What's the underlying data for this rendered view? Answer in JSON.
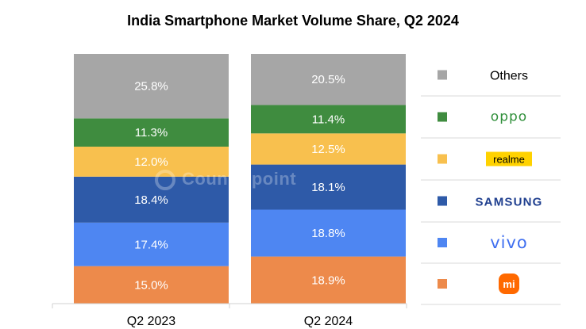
{
  "chart_data": {
    "type": "bar",
    "stacked": true,
    "title": "India Smartphone Market Volume Share, Q2 2024",
    "categories": [
      "Q2 2023",
      "Q2 2024"
    ],
    "ylim": [
      0,
      100
    ],
    "series": [
      {
        "name": "Xiaomi",
        "color": "#ED8A4B",
        "values": [
          15.0,
          18.9
        ],
        "labels": [
          "15.0%",
          "18.9%"
        ]
      },
      {
        "name": "vivo",
        "color": "#4E86F2",
        "values": [
          17.4,
          18.8
        ],
        "labels": [
          "17.4%",
          "18.8%"
        ]
      },
      {
        "name": "SAMSUNG",
        "color": "#2E5AA8",
        "values": [
          18.4,
          18.1
        ],
        "labels": [
          "18.4%",
          "18.1%"
        ]
      },
      {
        "name": "realme",
        "color": "#F8C04E",
        "values": [
          12.0,
          12.5
        ],
        "labels": [
          "12.0%",
          "12.5%"
        ]
      },
      {
        "name": "oppo",
        "color": "#3F8C3F",
        "values": [
          11.3,
          11.4
        ],
        "labels": [
          "11.3%",
          "11.4%"
        ]
      },
      {
        "name": "Others",
        "color": "#A6A6A6",
        "values": [
          25.8,
          20.5
        ],
        "labels": [
          "25.8%",
          "20.5%"
        ]
      }
    ],
    "legend": {
      "placement": "right",
      "entries": [
        {
          "name": "Others",
          "text": "Others",
          "color": "#A6A6A6",
          "logo": "text"
        },
        {
          "name": "oppo",
          "text": "oppo",
          "color": "#3F8C3F",
          "logo": "oppo-logo"
        },
        {
          "name": "realme",
          "text": "realme",
          "color": "#F8C04E",
          "logo": "realme-logo"
        },
        {
          "name": "samsung",
          "text": "SAMSUNG",
          "color": "#2E5AA8",
          "logo": "samsung-logo"
        },
        {
          "name": "vivo",
          "text": "vivo",
          "color": "#4E86F2",
          "logo": "vivo-logo"
        },
        {
          "name": "xiaomi",
          "text": "mi",
          "color": "#ED8A4B",
          "logo": "xiaomi-logo"
        }
      ]
    }
  },
  "watermark": {
    "text": "Counterpoint"
  }
}
